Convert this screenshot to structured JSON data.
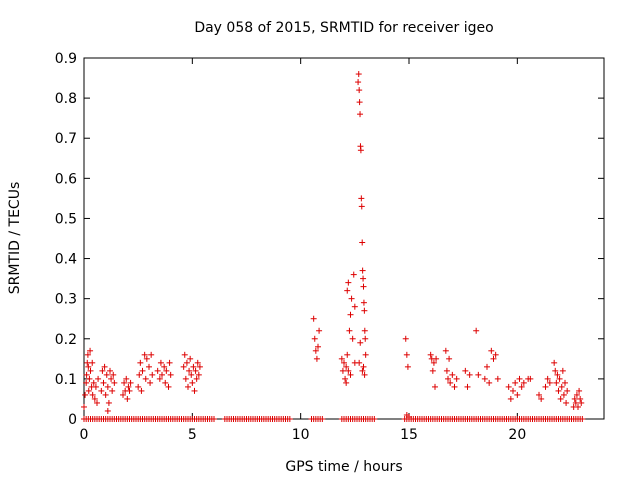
{
  "chart_data": {
    "type": "scatter",
    "title": "Day 058 of 2015, SRMTID for receiver igeo",
    "xlabel": "GPS time / hours",
    "ylabel": "SRMTID / TECUs",
    "xlim": [
      0,
      24
    ],
    "ylim": [
      0,
      0.9
    ],
    "xticks": [
      0,
      5,
      10,
      15,
      20
    ],
    "yticks": [
      0,
      0.1,
      0.2,
      0.3,
      0.4,
      0.5,
      0.6,
      0.7,
      0.8,
      0.9
    ],
    "xtick_labels": [
      "0",
      "5",
      "10",
      "15",
      "20"
    ],
    "ytick_labels": [
      "0",
      "0.1",
      "0.2",
      "0.3",
      "0.4",
      "0.5",
      "0.6",
      "0.7",
      "0.8",
      "0.9"
    ],
    "grid": false,
    "series": [
      {
        "name": "SRMTID",
        "marker": "+",
        "color": "#dd0000",
        "points": [
          [
            0.0,
            0.03
          ],
          [
            0.05,
            0.06
          ],
          [
            0.1,
            0.09
          ],
          [
            0.12,
            0.11
          ],
          [
            0.15,
            0.14
          ],
          [
            0.18,
            0.16
          ],
          [
            0.2,
            0.13
          ],
          [
            0.22,
            0.07
          ],
          [
            0.25,
            0.1
          ],
          [
            0.28,
            0.17
          ],
          [
            0.3,
            0.12
          ],
          [
            0.35,
            0.08
          ],
          [
            0.38,
            0.14
          ],
          [
            0.4,
            0.06
          ],
          [
            0.45,
            0.09
          ],
          [
            0.5,
            0.05
          ],
          [
            0.55,
            0.08
          ],
          [
            0.6,
            0.04
          ],
          [
            0.65,
            0.1
          ],
          [
            0.8,
            0.07
          ],
          [
            0.85,
            0.12
          ],
          [
            0.9,
            0.09
          ],
          [
            0.95,
            0.13
          ],
          [
            1.0,
            0.06
          ],
          [
            1.05,
            0.11
          ],
          [
            1.1,
            0.08
          ],
          [
            1.15,
            0.04
          ],
          [
            1.2,
            0.12
          ],
          [
            1.25,
            0.1
          ],
          [
            1.3,
            0.07
          ],
          [
            1.35,
            0.11
          ],
          [
            1.4,
            0.09
          ],
          [
            1.1,
            0.02
          ],
          [
            1.8,
            0.06
          ],
          [
            1.85,
            0.09
          ],
          [
            1.9,
            0.07
          ],
          [
            1.95,
            0.1
          ],
          [
            2.0,
            0.05
          ],
          [
            2.05,
            0.08
          ],
          [
            2.1,
            0.07
          ],
          [
            2.15,
            0.09
          ],
          [
            2.5,
            0.08
          ],
          [
            2.55,
            0.11
          ],
          [
            2.6,
            0.14
          ],
          [
            2.65,
            0.07
          ],
          [
            2.7,
            0.12
          ],
          [
            2.8,
            0.16
          ],
          [
            2.85,
            0.1
          ],
          [
            2.9,
            0.15
          ],
          [
            3.0,
            0.13
          ],
          [
            3.05,
            0.09
          ],
          [
            3.1,
            0.16
          ],
          [
            3.15,
            0.11
          ],
          [
            3.4,
            0.12
          ],
          [
            3.5,
            0.1
          ],
          [
            3.55,
            0.14
          ],
          [
            3.6,
            0.11
          ],
          [
            3.7,
            0.13
          ],
          [
            3.75,
            0.09
          ],
          [
            3.8,
            0.12
          ],
          [
            3.9,
            0.08
          ],
          [
            3.95,
            0.14
          ],
          [
            4.0,
            0.11
          ],
          [
            4.6,
            0.13
          ],
          [
            4.65,
            0.16
          ],
          [
            4.7,
            0.1
          ],
          [
            4.75,
            0.14
          ],
          [
            4.8,
            0.08
          ],
          [
            4.85,
            0.12
          ],
          [
            4.9,
            0.15
          ],
          [
            4.95,
            0.11
          ],
          [
            5.0,
            0.09
          ],
          [
            5.05,
            0.13
          ],
          [
            5.1,
            0.07
          ],
          [
            5.15,
            0.12
          ],
          [
            5.2,
            0.1
          ],
          [
            5.25,
            0.14
          ],
          [
            5.3,
            0.11
          ],
          [
            5.35,
            0.13
          ],
          [
            10.6,
            0.25
          ],
          [
            10.65,
            0.2
          ],
          [
            10.7,
            0.17
          ],
          [
            10.75,
            0.15
          ],
          [
            10.8,
            0.18
          ],
          [
            10.85,
            0.22
          ],
          [
            11.9,
            0.15
          ],
          [
            11.95,
            0.12
          ],
          [
            12.0,
            0.14
          ],
          [
            12.05,
            0.1
          ],
          [
            12.1,
            0.13
          ],
          [
            12.1,
            0.09
          ],
          [
            12.15,
            0.16
          ],
          [
            12.15,
            0.32
          ],
          [
            12.2,
            0.34
          ],
          [
            12.2,
            0.12
          ],
          [
            12.25,
            0.22
          ],
          [
            12.3,
            0.26
          ],
          [
            12.3,
            0.11
          ],
          [
            12.35,
            0.3
          ],
          [
            12.4,
            0.2
          ],
          [
            12.45,
            0.36
          ],
          [
            12.5,
            0.28
          ],
          [
            12.5,
            0.14
          ],
          [
            12.65,
            0.84
          ],
          [
            12.68,
            0.86
          ],
          [
            12.7,
            0.82
          ],
          [
            12.72,
            0.79
          ],
          [
            12.74,
            0.76
          ],
          [
            12.76,
            0.68
          ],
          [
            12.78,
            0.67
          ],
          [
            12.8,
            0.55
          ],
          [
            12.82,
            0.53
          ],
          [
            12.84,
            0.44
          ],
          [
            12.86,
            0.37
          ],
          [
            12.88,
            0.35
          ],
          [
            12.9,
            0.33
          ],
          [
            12.92,
            0.29
          ],
          [
            12.94,
            0.27
          ],
          [
            12.96,
            0.22
          ],
          [
            12.98,
            0.2
          ],
          [
            13.0,
            0.16
          ],
          [
            12.7,
            0.14
          ],
          [
            12.75,
            0.19
          ],
          [
            12.85,
            0.12
          ],
          [
            12.9,
            0.13
          ],
          [
            12.95,
            0.11
          ],
          [
            14.85,
            0.2
          ],
          [
            14.9,
            0.16
          ],
          [
            14.95,
            0.13
          ],
          [
            14.9,
            0.01
          ],
          [
            15.0,
            0.005
          ],
          [
            16.0,
            0.16
          ],
          [
            16.05,
            0.15
          ],
          [
            16.1,
            0.12
          ],
          [
            16.15,
            0.14
          ],
          [
            16.2,
            0.08
          ],
          [
            16.25,
            0.15
          ],
          [
            16.7,
            0.17
          ],
          [
            16.75,
            0.12
          ],
          [
            16.8,
            0.1
          ],
          [
            16.85,
            0.15
          ],
          [
            16.9,
            0.09
          ],
          [
            17.0,
            0.11
          ],
          [
            17.1,
            0.08
          ],
          [
            17.2,
            0.1
          ],
          [
            17.6,
            0.12
          ],
          [
            17.7,
            0.08
          ],
          [
            17.8,
            0.11
          ],
          [
            18.1,
            0.22
          ],
          [
            18.2,
            0.11
          ],
          [
            18.5,
            0.1
          ],
          [
            18.6,
            0.13
          ],
          [
            18.7,
            0.09
          ],
          [
            18.8,
            0.17
          ],
          [
            18.9,
            0.15
          ],
          [
            19.0,
            0.16
          ],
          [
            19.1,
            0.1
          ],
          [
            19.6,
            0.08
          ],
          [
            19.7,
            0.05
          ],
          [
            19.8,
            0.07
          ],
          [
            19.9,
            0.09
          ],
          [
            20.0,
            0.06
          ],
          [
            20.1,
            0.1
          ],
          [
            20.2,
            0.08
          ],
          [
            20.3,
            0.09
          ],
          [
            20.5,
            0.1
          ],
          [
            20.6,
            0.1
          ],
          [
            21.0,
            0.06
          ],
          [
            21.1,
            0.05
          ],
          [
            21.3,
            0.08
          ],
          [
            21.4,
            0.1
          ],
          [
            21.5,
            0.09
          ],
          [
            21.7,
            0.14
          ],
          [
            21.75,
            0.12
          ],
          [
            21.8,
            0.09
          ],
          [
            21.85,
            0.11
          ],
          [
            21.9,
            0.07
          ],
          [
            21.95,
            0.1
          ],
          [
            22.0,
            0.05
          ],
          [
            22.05,
            0.08
          ],
          [
            22.1,
            0.12
          ],
          [
            22.15,
            0.06
          ],
          [
            22.2,
            0.09
          ],
          [
            22.25,
            0.04
          ],
          [
            22.3,
            0.07
          ],
          [
            22.6,
            0.03
          ],
          [
            22.65,
            0.05
          ],
          [
            22.7,
            0.04
          ],
          [
            22.75,
            0.06
          ],
          [
            22.8,
            0.03
          ],
          [
            22.85,
            0.07
          ],
          [
            22.9,
            0.05
          ],
          [
            22.95,
            0.04
          ]
        ],
        "baseline_ranges": [
          [
            0.0,
            6.0
          ],
          [
            6.5,
            9.5
          ],
          [
            10.5,
            11.0
          ],
          [
            11.9,
            13.4
          ],
          [
            14.8,
            23.0
          ]
        ],
        "baseline_value": 0
      }
    ]
  }
}
